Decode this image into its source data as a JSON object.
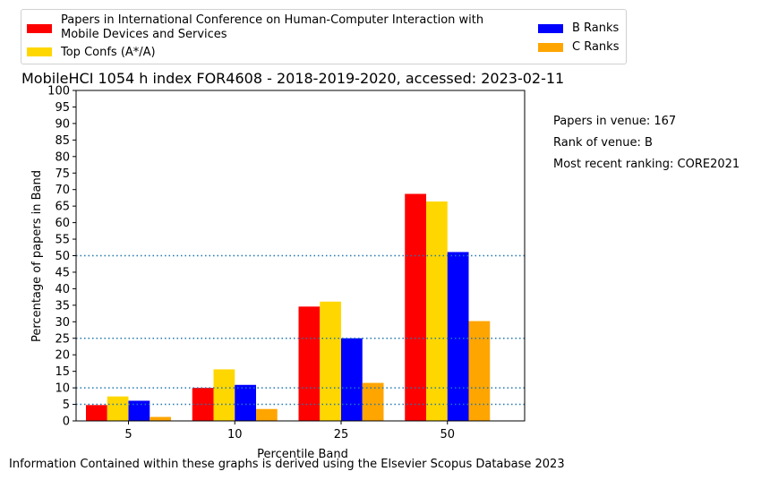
{
  "chart_data": {
    "type": "bar",
    "title": "MobileHCI 1054 h index FOR4608 - 2018-2019-2020, accessed: 2023-02-11",
    "xlabel": "Percentile Band",
    "ylabel": "Percentage of papers in Band",
    "categories": [
      "5",
      "10",
      "25",
      "50"
    ],
    "ylim": [
      0,
      100
    ],
    "yticks": [
      0,
      5,
      10,
      15,
      20,
      25,
      30,
      35,
      40,
      45,
      50,
      55,
      60,
      65,
      70,
      75,
      80,
      85,
      90,
      95,
      100
    ],
    "reference_lines": [
      5,
      10,
      25,
      50
    ],
    "series": [
      {
        "name": "Papers in International Conference on Human-Computer Interaction with Mobile Devices and Services",
        "color": "#ff0000",
        "values": [
          4.8,
          10.0,
          34.6,
          68.7
        ]
      },
      {
        "name": "Top Confs (A*/A)",
        "color": "#ffd700",
        "values": [
          7.4,
          15.6,
          36.1,
          66.4
        ]
      },
      {
        "name": "B Ranks",
        "color": "#0000ff",
        "values": [
          6.1,
          10.9,
          25.0,
          51.1
        ]
      },
      {
        "name": "C Ranks",
        "color": "#ffa500",
        "values": [
          1.2,
          3.6,
          11.5,
          30.2
        ]
      }
    ],
    "legend_position": "top"
  },
  "legend": {
    "red_line1": "Papers in International Conference on Human-Computer Interaction with",
    "red_line2": "Mobile Devices and Services",
    "yellow": "Top Confs (A*/A)",
    "blue": "B Ranks",
    "orange": "C Ranks"
  },
  "side_info": {
    "papers": "Papers in venue: 167",
    "rank": "Rank of venue: B",
    "recent": "Most recent ranking: CORE2021"
  },
  "footer": "Information Contained within these graphs is derived using the Elsevier Scopus Database 2023"
}
